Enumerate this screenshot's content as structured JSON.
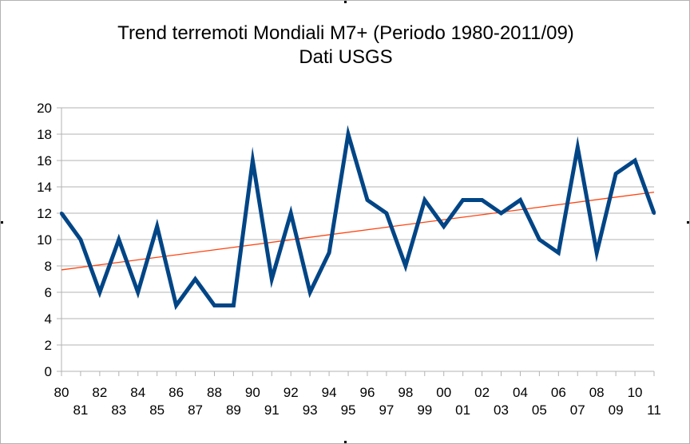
{
  "chart_data": {
    "type": "line",
    "title": "Trend terremoti Mondiali M7+ (Periodo 1980-2011/09)",
    "subtitle": "Dati USGS",
    "xlabel": "",
    "ylabel": "",
    "ylim": [
      0,
      20
    ],
    "yticks": [
      0,
      2,
      4,
      6,
      8,
      10,
      12,
      14,
      16,
      18,
      20
    ],
    "grid": true,
    "legend": "none",
    "categories": [
      "80",
      "81",
      "82",
      "83",
      "84",
      "85",
      "86",
      "87",
      "88",
      "89",
      "90",
      "91",
      "92",
      "93",
      "94",
      "95",
      "96",
      "97",
      "98",
      "99",
      "00",
      "01",
      "02",
      "03",
      "04",
      "05",
      "06",
      "07",
      "08",
      "09",
      "10",
      "11"
    ],
    "series": [
      {
        "values": [
          12,
          10,
          6,
          10,
          6,
          11,
          5,
          7,
          5,
          5,
          16,
          7,
          12,
          6,
          9,
          18,
          13,
          12,
          8,
          13,
          11,
          13,
          13,
          12,
          13,
          10,
          9,
          17,
          9,
          15,
          16,
          12
        ],
        "color": "#004586"
      }
    ],
    "trendline": {
      "type": "linear",
      "start": 7.7,
      "end": 13.6,
      "color": "#ff420e"
    }
  }
}
